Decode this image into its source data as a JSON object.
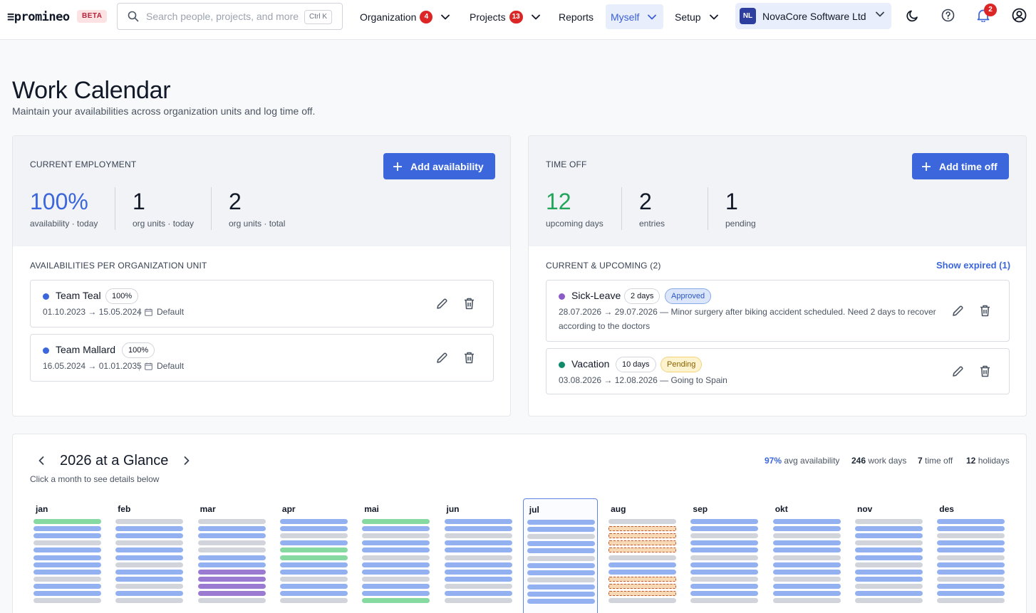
{
  "nav": {
    "logo": "≡promineo",
    "beta": "BETA",
    "search_placeholder": "Search people, projects, and more",
    "search_shortcut": "Ctrl K",
    "organization": {
      "label": "Organization",
      "badge": "4"
    },
    "projects": {
      "label": "Projects",
      "badge": "13"
    },
    "reports": "Reports",
    "myself": "Myself",
    "setup": "Setup",
    "org": {
      "initials": "NL",
      "name": "NovaCore Software Ltd"
    },
    "notifications_badge": "2"
  },
  "page": {
    "title": "Work Calendar",
    "subtitle": "Maintain your availabilities across organization units and log time off."
  },
  "employment": {
    "label": "CURRENT EMPLOYMENT",
    "button": "Add availability",
    "stats": [
      {
        "value": "100%",
        "label": "availability · today"
      },
      {
        "value": "1",
        "label": "org units · today"
      },
      {
        "value": "2",
        "label": "org units · total"
      }
    ],
    "list_label": "AVAILABILITIES PER ORGANIZATION UNIT",
    "units": [
      {
        "name": "Team Teal",
        "percent": "100%",
        "range": "01.10.2023 → 15.05.2024",
        "calendar": "Default",
        "color": "#3b66dc"
      },
      {
        "name": "Team Mallard",
        "percent": "100%",
        "range": "16.05.2024 → 01.01.2035",
        "calendar": "Default",
        "color": "#3b66dc"
      }
    ]
  },
  "timeoff": {
    "label": "TIME OFF",
    "button": "Add time off",
    "stats": [
      {
        "value": "12",
        "label": "upcoming days",
        "color": "#22a55a"
      },
      {
        "value": "2",
        "label": "entries"
      },
      {
        "value": "1",
        "label": "pending"
      }
    ],
    "list_label": "CURRENT & UPCOMING (2)",
    "show_expired": "Show expired (1)",
    "entries": [
      {
        "type": "Sick-Leave",
        "days": "2 days",
        "status": "Approved",
        "color": "#8b5cc7",
        "desc_line1": "28.07.2026 → 29.07.2026 — Minor surgery after biking accident scheduled. Need 2 days to recover",
        "desc_line2": "according to the doctors"
      },
      {
        "type": "Vacation",
        "days": "10 days",
        "status": "Pending",
        "color": "#0f8a6a",
        "desc_line1": "03.08.2026 → 12.08.2026 — Going to Spain",
        "desc_line2": ""
      }
    ]
  },
  "glance": {
    "title": "2026 at a Glance",
    "subtitle": "Click a month to see details below",
    "avg_value": "97%",
    "avg_label": "avg availability",
    "work_days_value": "246",
    "work_days_label": "work days",
    "time_off_value": "7",
    "time_off_label": "time off",
    "holidays_value": "12",
    "holidays_label": "holidays",
    "selected_month": "jul",
    "months": [
      {
        "name": "jan",
        "days": "hwwowwwwowwo"
      },
      {
        "name": "feb",
        "days": "owwowwowwowo"
      },
      {
        "name": "mar",
        "days": "owwoowwsssso"
      },
      {
        "name": "apr",
        "days": "wwowhhwwowwo"
      },
      {
        "name": "mai",
        "days": "hwowwowwowwh"
      },
      {
        "name": "jun",
        "days": "wwowwowwwowo"
      },
      {
        "name": "jul",
        "days": "wwowwowwowww"
      },
      {
        "name": "aug",
        "days": "ovvvvowwvvvo"
      },
      {
        "name": "sep",
        "days": "wwowwowwowwo"
      },
      {
        "name": "okt",
        "days": "wwowwowwowwo"
      },
      {
        "name": "nov",
        "days": "owwowwowwowo"
      },
      {
        "name": "des",
        "days": "wwowwowwowwo"
      }
    ]
  }
}
